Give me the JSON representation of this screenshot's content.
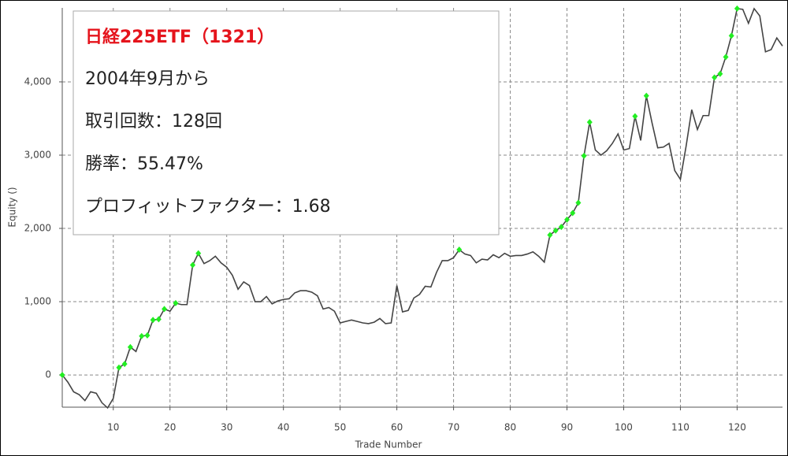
{
  "chart_data": {
    "type": "line",
    "title": "日経225ETF（1321）",
    "annotations": [
      "2004年9月から",
      "取引回数：128回",
      "勝率：55.47%",
      "プロフィットファクター：1.68"
    ],
    "x_label": "Trade Number",
    "y_label": "Equity ()",
    "x": [
      1,
      2,
      3,
      4,
      5,
      6,
      7,
      8,
      9,
      10,
      11,
      12,
      13,
      14,
      15,
      16,
      17,
      18,
      19,
      20,
      21,
      22,
      23,
      24,
      25,
      26,
      27,
      28,
      29,
      30,
      31,
      32,
      33,
      34,
      35,
      36,
      37,
      38,
      39,
      40,
      41,
      42,
      43,
      44,
      45,
      46,
      47,
      48,
      49,
      50,
      51,
      52,
      53,
      54,
      55,
      56,
      57,
      58,
      59,
      60,
      61,
      62,
      63,
      64,
      65,
      66,
      67,
      68,
      69,
      70,
      71,
      72,
      73,
      74,
      75,
      76,
      77,
      78,
      79,
      80,
      81,
      82,
      83,
      84,
      85,
      86,
      87,
      88,
      89,
      90,
      91,
      92,
      93,
      94,
      95,
      96,
      97,
      98,
      99,
      100,
      101,
      102,
      103,
      104,
      105,
      106,
      107,
      108,
      109,
      110,
      111,
      112,
      113,
      114,
      115,
      116,
      117,
      118,
      119,
      120,
      121,
      122,
      123,
      124,
      125,
      126,
      127,
      128
    ],
    "series": [
      {
        "name": "Equity",
        "color": "#444444",
        "marker_color": "#22ee22",
        "values": [
          0,
          -100,
          -230,
          -270,
          -350,
          -230,
          -250,
          -380,
          -450,
          -320,
          100,
          150,
          380,
          320,
          530,
          540,
          750,
          760,
          900,
          870,
          980,
          960,
          960,
          1500,
          1660,
          1520,
          1560,
          1620,
          1530,
          1470,
          1360,
          1170,
          1270,
          1220,
          1000,
          1000,
          1070,
          970,
          1010,
          1030,
          1040,
          1120,
          1150,
          1150,
          1130,
          1080,
          900,
          920,
          870,
          710,
          730,
          750,
          730,
          710,
          700,
          720,
          770,
          700,
          710,
          1220,
          860,
          880,
          1050,
          1100,
          1210,
          1200,
          1400,
          1560,
          1560,
          1600,
          1710,
          1650,
          1630,
          1530,
          1580,
          1570,
          1640,
          1600,
          1660,
          1620,
          1630,
          1630,
          1650,
          1680,
          1620,
          1540,
          1910,
          1970,
          2020,
          2120,
          2210,
          2350,
          2990,
          3450,
          3070,
          3000,
          3060,
          3160,
          3290,
          3070,
          3090,
          3530,
          3200,
          3810,
          3440,
          3100,
          3110,
          3160,
          2790,
          2670,
          3120,
          3620,
          3350,
          3540,
          3540,
          4060,
          4110,
          4340,
          4630,
          5000,
          4990,
          4800,
          5000,
          4900,
          4410,
          4440,
          4600,
          4490
        ]
      }
    ],
    "xlim": [
      1,
      128
    ],
    "ylim": [
      -440,
      5010
    ],
    "xticks": [
      10,
      20,
      30,
      40,
      50,
      60,
      70,
      80,
      90,
      100,
      110,
      120
    ],
    "yticks": [
      0,
      {
        "value": 1000,
        "label": "1,000"
      },
      {
        "value": 2000,
        "label": "2,000"
      },
      {
        "value": 3000,
        "label": "3,000"
      },
      {
        "value": 4000,
        "label": "4,000"
      }
    ],
    "grid": true
  }
}
